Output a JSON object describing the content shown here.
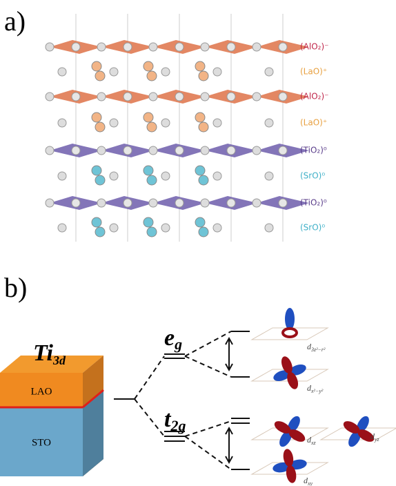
{
  "panel_a": {
    "label": "a)",
    "layers": [
      "(AlO₂)⁻",
      "(LaO)⁺",
      "(AlO₂)⁻",
      "(LaO)⁺",
      "(TiO₂)⁰",
      "(SrO)⁰",
      "(TiO₂)⁰",
      "(SrO)⁰"
    ]
  },
  "panel_b": {
    "label": "b)",
    "ion": {
      "main": "Ti",
      "sub": "3d"
    },
    "top_layer": "LAO",
    "bottom_layer": "STO",
    "eg": {
      "main": "e",
      "sub": "g"
    },
    "t2g": {
      "main": "t",
      "sub": "2g"
    },
    "orbitals": [
      {
        "main": "d",
        "sub": "3z²−r²"
      },
      {
        "main": "d",
        "sub": "x²−y²"
      },
      {
        "main": "d",
        "sub": "xz"
      },
      {
        "main": "d",
        "sub": "yz"
      },
      {
        "main": "d",
        "sub": "xy"
      }
    ]
  }
}
